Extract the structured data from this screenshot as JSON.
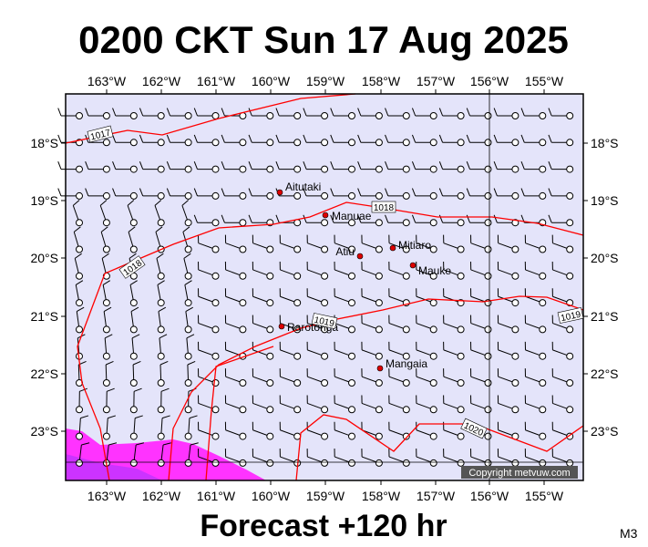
{
  "title": "0200 CKT Sun 17 Aug 2025",
  "footer": "Forecast +120 hr",
  "model": "M3",
  "copyright": "Copyright metvuw.com",
  "lon_labels": [
    "163°W",
    "162°W",
    "161°W",
    "160°W",
    "159°W",
    "158°W",
    "157°W",
    "156°W",
    "155°W"
  ],
  "lat_labels": [
    "18°S",
    "19°S",
    "20°S",
    "21°S",
    "22°S",
    "23°S"
  ],
  "places": [
    "Aitutaki",
    "Manuae",
    "Atiu",
    "Mitiaro",
    "Mauke",
    "Rarotonga",
    "Mangaia"
  ],
  "isobar_labels": [
    "1017",
    "1018",
    "1018",
    "1019",
    "1019",
    "1020"
  ]
}
